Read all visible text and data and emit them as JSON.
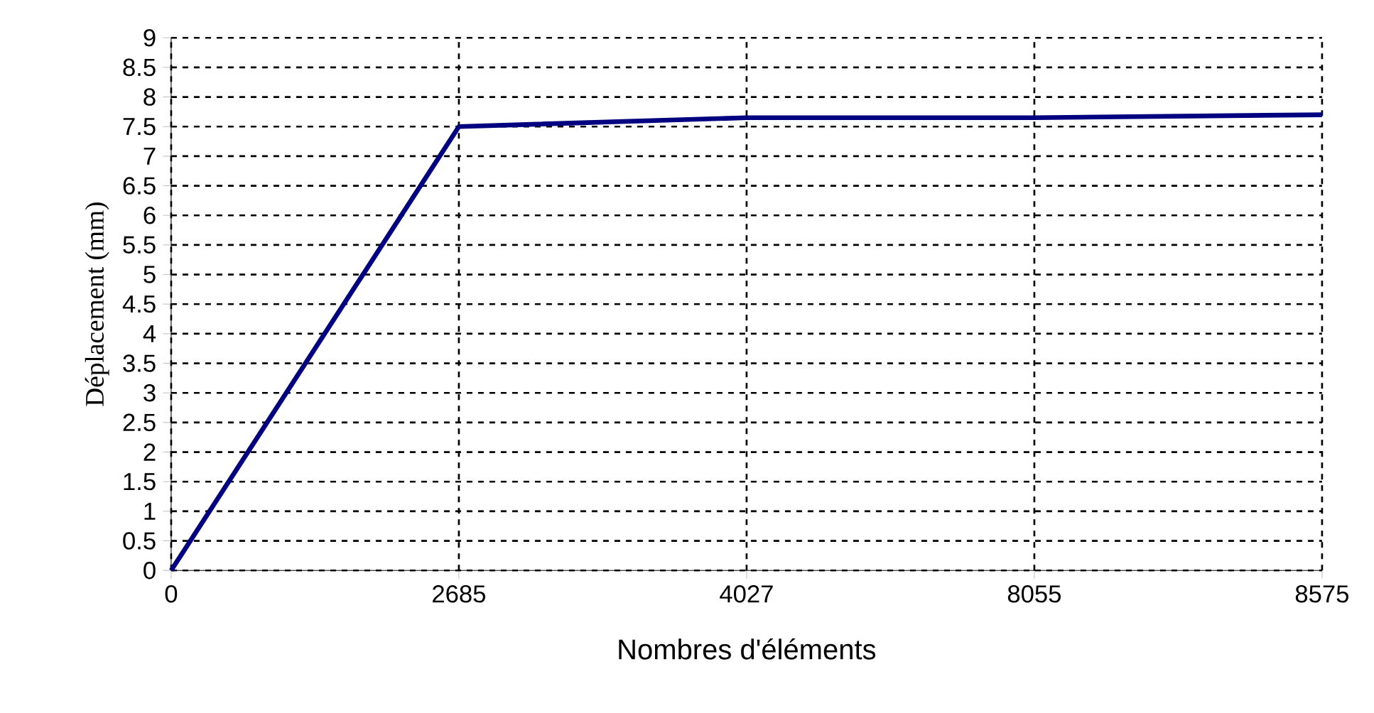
{
  "chart_data": {
    "type": "line",
    "xlabel": "Nombres d'éléments",
    "ylabel": "Déplacement (mm)",
    "categories": [
      "0",
      "2685",
      "4027",
      "8055",
      "8575"
    ],
    "series": [
      {
        "color": "#000080",
        "values": [
          0,
          7.5,
          7.65,
          7.65,
          7.7
        ]
      }
    ],
    "ylim": [
      0,
      9
    ],
    "yticks": [
      0,
      0.5,
      1,
      1.5,
      2,
      2.5,
      3,
      3.5,
      4,
      4.5,
      5,
      5.5,
      6,
      6.5,
      7,
      7.5,
      8,
      8.5,
      9
    ],
    "grid": true
  }
}
